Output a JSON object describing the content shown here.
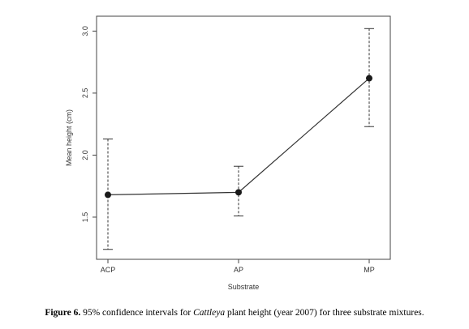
{
  "chart_data": {
    "type": "line",
    "xlabel": "Substrate",
    "ylabel": "Mean height (cm)",
    "categories": [
      "ACP",
      "AP",
      "MP"
    ],
    "values": [
      1.68,
      1.7,
      2.62
    ],
    "ci_lower": [
      1.24,
      1.51,
      2.23
    ],
    "ci_upper": [
      2.13,
      1.91,
      3.02
    ],
    "ylim": [
      1.16,
      3.12
    ],
    "yticks": [
      "1.5",
      "2.0",
      "2.5",
      "3.0"
    ],
    "grid": false,
    "legend": "none",
    "line_color": "#333333",
    "point_color": "#1a1a1a"
  },
  "caption": {
    "label": "Figure 6.",
    "text_before": " 95% confidence intervals for ",
    "species": "Cattleya",
    "text_after": " plant height (year 2007) for three substrate mixtures."
  }
}
